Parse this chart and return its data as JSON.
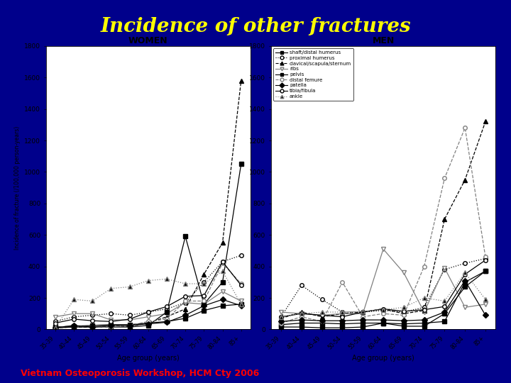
{
  "title": "Incidence of other fractures",
  "subtitle": "Vietnam Osteoporosis Workshop, HCM Cty 2006",
  "title_color": "#FFFF00",
  "subtitle_color": "#FF0000",
  "bg_color": "#00008B",
  "plot_bg_color": "#FFFFFF",
  "age_groups": [
    "35-39",
    "40-44",
    "45-49",
    "50-54",
    "55-59",
    "60-64",
    "65-69",
    "70-74",
    "75-79",
    "80-84",
    "85+"
  ],
  "series": [
    {
      "name": "shaft/distal humerus",
      "marker": "s",
      "linestyle": "-",
      "color": "black",
      "mfc": "black",
      "women": [
        15,
        20,
        25,
        30,
        30,
        40,
        50,
        70,
        120,
        150,
        160
      ],
      "men": [
        30,
        40,
        40,
        35,
        40,
        40,
        35,
        40,
        50,
        300,
        370
      ]
    },
    {
      "name": "proximal humerus",
      "marker": "o",
      "linestyle": ":",
      "color": "black",
      "mfc": "white",
      "women": [
        50,
        80,
        90,
        100,
        90,
        110,
        130,
        170,
        300,
        430,
        470
      ],
      "men": [
        80,
        280,
        190,
        110,
        110,
        120,
        110,
        140,
        380,
        420,
        450
      ]
    },
    {
      "name": "clavical/scapula/sternum",
      "marker": "^",
      "linestyle": "--",
      "color": "black",
      "mfc": "black",
      "women": [
        10,
        15,
        15,
        20,
        20,
        40,
        80,
        130,
        350,
        550,
        1580
      ],
      "men": [
        70,
        110,
        80,
        100,
        110,
        130,
        100,
        120,
        700,
        950,
        1320
      ]
    },
    {
      "name": "ribs",
      "marker": "v",
      "linestyle": "-",
      "color": "gray",
      "mfc": "white",
      "women": [
        80,
        100,
        100,
        60,
        60,
        80,
        100,
        170,
        160,
        240,
        180
      ],
      "men": [
        110,
        100,
        90,
        100,
        100,
        510,
        360,
        110,
        390,
        140,
        160
      ]
    },
    {
      "name": "pelvis",
      "marker": "s",
      "linestyle": "-",
      "color": "black",
      "mfc": "black",
      "women": [
        10,
        15,
        15,
        15,
        15,
        25,
        110,
        590,
        160,
        300,
        1050
      ],
      "men": [
        15,
        15,
        10,
        10,
        15,
        40,
        20,
        20,
        100,
        270,
        370
      ]
    },
    {
      "name": "distal femure",
      "marker": "o",
      "linestyle": "--",
      "color": "gray",
      "mfc": "white",
      "women": [
        10,
        25,
        15,
        15,
        25,
        50,
        65,
        180,
        180,
        420,
        290
      ],
      "men": [
        40,
        80,
        50,
        300,
        80,
        100,
        90,
        400,
        960,
        1280,
        460
      ]
    },
    {
      "name": "patella",
      "marker": "D",
      "linestyle": "-",
      "color": "black",
      "mfc": "black",
      "women": [
        10,
        25,
        15,
        25,
        25,
        35,
        45,
        90,
        150,
        190,
        150
      ],
      "men": [
        50,
        60,
        55,
        55,
        60,
        60,
        55,
        60,
        110,
        310,
        90
      ]
    },
    {
      "name": "tibia/fibula",
      "marker": "o",
      "linestyle": "-",
      "color": "black",
      "mfc": "white",
      "women": [
        40,
        65,
        55,
        50,
        65,
        110,
        145,
        210,
        215,
        430,
        280
      ],
      "men": [
        80,
        100,
        90,
        80,
        110,
        130,
        115,
        125,
        145,
        350,
        440
      ]
    },
    {
      "name": "ankle",
      "marker": "^",
      "linestyle": ":",
      "color": "gray",
      "mfc": "black",
      "women": [
        10,
        190,
        180,
        260,
        270,
        310,
        320,
        290,
        290,
        370,
        160
      ],
      "men": [
        80,
        100,
        110,
        110,
        115,
        125,
        140,
        200,
        180,
        360,
        190
      ]
    }
  ],
  "ylabel": "Incidence of fracture (/100,000 person-years)",
  "xlabel": "Age group (years)",
  "ylim": [
    0,
    1800
  ],
  "yticks": [
    0,
    200,
    400,
    600,
    800,
    1000,
    1200,
    1400,
    1600,
    1800
  ]
}
